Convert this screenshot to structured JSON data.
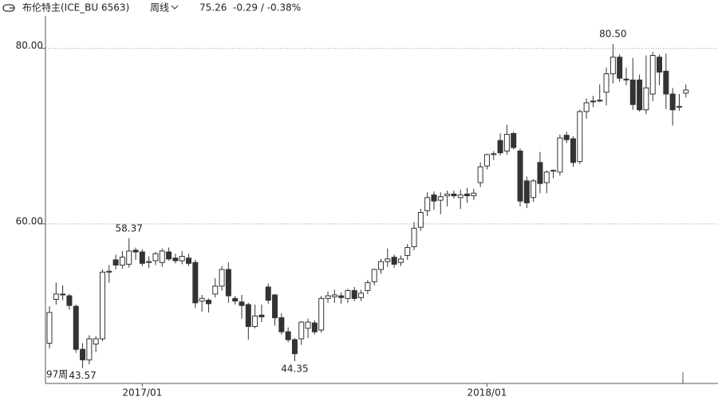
{
  "header": {
    "symbol": "布伦特主(ICE_BU 6563)",
    "period": "周线",
    "last": "75.26",
    "change": "-0.29 / -0.38%"
  },
  "chart_data": {
    "type": "candlestick",
    "period_label": "97周",
    "categories": [
      null,
      null,
      null,
      null,
      null,
      null,
      null,
      null,
      null,
      null,
      null,
      null,
      null,
      null,
      "2017/01",
      null,
      null,
      null,
      null,
      null,
      null,
      null,
      null,
      null,
      null,
      null,
      null,
      null,
      null,
      null,
      null,
      null,
      null,
      null,
      null,
      null,
      null,
      null,
      null,
      null,
      null,
      null,
      null,
      null,
      null,
      null,
      null,
      null,
      null,
      null,
      null,
      null,
      null,
      null,
      null,
      null,
      null,
      null,
      null,
      null,
      null,
      null,
      null,
      null,
      null,
      null,
      "2018/01",
      null,
      null,
      null,
      null,
      null,
      null,
      null,
      null,
      null,
      null,
      null,
      null,
      null,
      null,
      null,
      null,
      null,
      null,
      null,
      null,
      null,
      null,
      null,
      null,
      null,
      null,
      null,
      null,
      null,
      null
    ],
    "opens": [
      46.4,
      51.4,
      52.0,
      51.8,
      50.6,
      45.7,
      44.5,
      46.3,
      46.9,
      54.5,
      55.9,
      55.3,
      55.4,
      57.0,
      56.8,
      55.6,
      55.8,
      55.6,
      56.8,
      56.1,
      55.8,
      56.1,
      55.6,
      51.2,
      51.3,
      52.0,
      52.9,
      54.8,
      51.5,
      51.1,
      50.8,
      48.3,
      49.6,
      52.8,
      51.9,
      49.3,
      47.7,
      46.8,
      46.9,
      48.1,
      48.7,
      47.9,
      51.5,
      51.7,
      51.8,
      51.5,
      52.4,
      51.6,
      52.4,
      53.4,
      54.8,
      55.7,
      56.2,
      55.6,
      56.4,
      57.4,
      59.6,
      61.5,
      63.3,
      62.7,
      63.2,
      63.4,
      63.0,
      63.4,
      63.2,
      64.7,
      66.6,
      67.9,
      69.5,
      68.3,
      70.3,
      68.3,
      64.9,
      63.0,
      67.0,
      64.7,
      66.0,
      65.9,
      70.1,
      69.7,
      67.1,
      72.8,
      74.0,
      74.1,
      75.0,
      77.1,
      79.0,
      76.5,
      76.4,
      76.4,
      73.0,
      74.8,
      79.0,
      77.4,
      74.8,
      73.3,
      74.9
    ],
    "highs": [
      50.6,
      53.3,
      53.0,
      52.0,
      50.8,
      46.4,
      47.3,
      47.2,
      54.8,
      55.3,
      56.5,
      56.9,
      58.37,
      57.3,
      57.1,
      56.3,
      56.8,
      57.2,
      57.3,
      56.6,
      56.9,
      56.6,
      55.9,
      51.9,
      51.5,
      53.8,
      55.2,
      55.6,
      51.8,
      51.9,
      51.0,
      50.8,
      50.8,
      53.2,
      52.0,
      49.8,
      48.2,
      47.0,
      48.9,
      49.2,
      49.0,
      51.8,
      52.3,
      52.5,
      52.2,
      52.6,
      52.8,
      52.5,
      53.6,
      54.9,
      56.0,
      57.2,
      56.5,
      56.4,
      57.7,
      60.2,
      61.7,
      63.6,
      63.7,
      63.6,
      63.8,
      63.8,
      63.9,
      64.1,
      64.0,
      67.0,
      68.0,
      68.3,
      70.3,
      71.3,
      70.5,
      68.6,
      65.4,
      65.1,
      68.2,
      66.1,
      66.2,
      70.2,
      70.5,
      70.0,
      73.0,
      74.3,
      74.6,
      75.9,
      77.8,
      80.5,
      79.3,
      77.8,
      78.9,
      77.0,
      79.2,
      79.6,
      79.3,
      79.4,
      75.5,
      74.8,
      75.9
    ],
    "lows": [
      45.8,
      50.8,
      51.3,
      50.2,
      45.3,
      43.57,
      44.0,
      45.4,
      46.6,
      53.3,
      54.8,
      54.9,
      55.0,
      55.9,
      55.2,
      55.0,
      55.3,
      55.1,
      55.8,
      55.5,
      55.4,
      55.2,
      50.4,
      50.0,
      49.9,
      51.6,
      52.4,
      51.0,
      50.8,
      49.2,
      46.8,
      48.1,
      48.8,
      50.9,
      48.4,
      47.4,
      46.5,
      44.35,
      46.2,
      47.0,
      47.4,
      47.6,
      51.0,
      51.0,
      50.9,
      51.0,
      51.2,
      51.2,
      52.0,
      53.0,
      54.3,
      55.1,
      55.0,
      55.2,
      55.9,
      57.0,
      59.2,
      60.9,
      61.6,
      61.1,
      62.0,
      62.9,
      61.7,
      62.4,
      62.7,
      64.2,
      66.2,
      67.3,
      67.8,
      67.9,
      68.5,
      62.0,
      61.8,
      62.5,
      63.5,
      63.5,
      65.2,
      65.5,
      69.2,
      66.5,
      66.8,
      72.0,
      73.3,
      73.9,
      73.5,
      76.0,
      76.2,
      75.8,
      73.0,
      72.8,
      72.5,
      74.0,
      75.8,
      73.1,
      71.2,
      72.9,
      74.4
    ],
    "closes": [
      49.9,
      52.0,
      51.9,
      50.7,
      45.7,
      44.5,
      46.9,
      46.9,
      54.5,
      54.6,
      55.3,
      56.2,
      56.9,
      56.8,
      55.5,
      55.7,
      56.6,
      56.9,
      56.0,
      55.8,
      56.3,
      55.5,
      51.0,
      51.5,
      50.9,
      52.9,
      54.8,
      51.8,
      51.2,
      50.7,
      48.3,
      49.5,
      49.4,
      51.3,
      49.3,
      47.7,
      46.8,
      45.2,
      48.8,
      48.8,
      47.7,
      51.5,
      51.8,
      51.9,
      51.6,
      52.4,
      51.5,
      52.1,
      53.3,
      54.8,
      55.7,
      56.0,
      55.4,
      56.0,
      57.3,
      59.5,
      61.3,
      63.0,
      62.6,
      63.1,
      63.4,
      63.2,
      63.3,
      63.2,
      63.5,
      66.5,
      67.9,
      68.0,
      68.1,
      70.2,
      68.7,
      62.6,
      62.4,
      64.9,
      64.6,
      65.9,
      66.1,
      69.8,
      69.6,
      67.0,
      72.8,
      73.8,
      73.9,
      74.0,
      77.1,
      79.0,
      76.6,
      76.4,
      73.6,
      73.0,
      75.5,
      79.2,
      77.3,
      74.8,
      73.0,
      73.4,
      75.26
    ],
    "high_labels": [
      null,
      null,
      null,
      null,
      null,
      null,
      null,
      null,
      null,
      null,
      null,
      null,
      "58.37",
      null,
      null,
      null,
      null,
      null,
      null,
      null,
      null,
      null,
      null,
      null,
      null,
      null,
      null,
      null,
      null,
      null,
      null,
      null,
      null,
      null,
      null,
      null,
      null,
      null,
      null,
      null,
      null,
      null,
      null,
      null,
      null,
      null,
      null,
      null,
      null,
      null,
      null,
      null,
      null,
      null,
      null,
      null,
      null,
      null,
      null,
      null,
      null,
      null,
      null,
      null,
      null,
      null,
      null,
      null,
      null,
      null,
      null,
      null,
      null,
      null,
      null,
      null,
      null,
      null,
      null,
      null,
      null,
      null,
      null,
      null,
      null,
      "80.50",
      null,
      null,
      null,
      null,
      null,
      null,
      null,
      null,
      null,
      null,
      null
    ],
    "low_labels": [
      null,
      null,
      null,
      null,
      null,
      "43.57",
      null,
      null,
      null,
      null,
      null,
      null,
      null,
      null,
      null,
      null,
      null,
      null,
      null,
      null,
      null,
      null,
      null,
      null,
      null,
      null,
      null,
      null,
      null,
      null,
      null,
      null,
      null,
      null,
      null,
      null,
      null,
      "44.35",
      null,
      null,
      null,
      null,
      null,
      null,
      null,
      null,
      null,
      null,
      null,
      null,
      null,
      null,
      null,
      null,
      null,
      null,
      null,
      null,
      null,
      null,
      null,
      null,
      null,
      null,
      null,
      null,
      null,
      null,
      null,
      null,
      null,
      null,
      null,
      null,
      null,
      null,
      null,
      null,
      null,
      null,
      null,
      null,
      null,
      null,
      null,
      null,
      null,
      null,
      null,
      null,
      null,
      null,
      null,
      null,
      null,
      null,
      null
    ],
    "up_color": "#ffffff",
    "down_color": "#333333",
    "line_color": "#333333",
    "ylim": [
      41.9,
      83.7
    ],
    "yticks": [
      {
        "value": 60,
        "label": "60.00"
      },
      {
        "value": 80,
        "label": "80.00"
      }
    ],
    "grid": true
  }
}
